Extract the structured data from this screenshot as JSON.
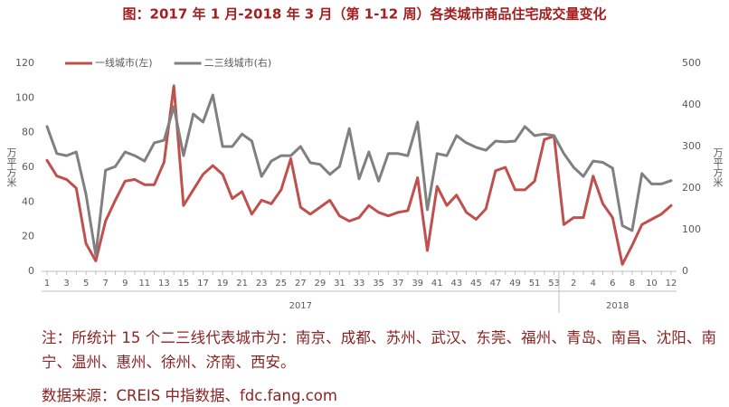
{
  "chart_data": {
    "type": "line",
    "title": "图：2017 年 1 月-2018 年 3 月（第 1-12 周）各类城市商品住宅成交量变化",
    "y_label": "万平方米",
    "y2_label": "万平方米",
    "groups": [
      {
        "label": "2017",
        "categories": [
          "1",
          null,
          "3",
          null,
          "5",
          null,
          "7",
          null,
          "9",
          null,
          "11",
          null,
          "13",
          null,
          "15",
          null,
          "17",
          null,
          "19",
          null,
          "21",
          null,
          "23",
          null,
          "25",
          null,
          "27",
          null,
          "29",
          null,
          "31",
          null,
          "33",
          null,
          "35",
          null,
          "37",
          null,
          "39",
          null,
          "41",
          null,
          "43",
          null,
          "45",
          null,
          "47",
          null,
          "49",
          null,
          "51",
          null,
          "53"
        ]
      },
      {
        "label": "2018",
        "categories": [
          null,
          "2",
          null,
          "4",
          null,
          "6",
          null,
          "8",
          null,
          "10",
          null,
          "12"
        ]
      }
    ],
    "series": [
      {
        "name": "一线城市(左)",
        "color": "#c0504d",
        "values": [
          64,
          55,
          53,
          48,
          16,
          6,
          29,
          41,
          52,
          53,
          50,
          50,
          63,
          107,
          38,
          47,
          56,
          61,
          56,
          42,
          46,
          33,
          41,
          39,
          47,
          65,
          37,
          33,
          37,
          41,
          32,
          29,
          31,
          38,
          34,
          32,
          34,
          35,
          54,
          12,
          49,
          38,
          44,
          34,
          30,
          36,
          58,
          60,
          47,
          47,
          52,
          76,
          78,
          27,
          31,
          31,
          55,
          39,
          31,
          4,
          15,
          27,
          30,
          33,
          38
        ]
      },
      {
        "name": "二三线城市(右)",
        "color": "#808080",
        "axis": "y2",
        "values": [
          348,
          283,
          278,
          287,
          185,
          39,
          243,
          252,
          287,
          278,
          265,
          309,
          315,
          396,
          278,
          378,
          359,
          424,
          300,
          300,
          330,
          313,
          228,
          265,
          278,
          278,
          300,
          261,
          257,
          233,
          252,
          343,
          222,
          287,
          217,
          283,
          283,
          278,
          359,
          148,
          283,
          278,
          326,
          309,
          298,
          291,
          313,
          311,
          313,
          348,
          326,
          330,
          326,
          283,
          250,
          228,
          265,
          262,
          248,
          110,
          98,
          235,
          210,
          210,
          218
        ]
      }
    ],
    "ylim": [
      0,
      120
    ],
    "yticks": [
      0,
      20,
      40,
      60,
      80,
      100,
      120
    ],
    "y2lim": [
      0,
      500
    ],
    "y2ticks": [
      0,
      100,
      200,
      300,
      400,
      500
    ],
    "grid": false,
    "legend": "top-left"
  },
  "note": "注：所统计 15 个二三线代表城市为：南京、成都、苏州、武汉、东莞、福州、青岛、南昌、沈阳、南宁、温州、惠州、徐州、济南、西安。",
  "source": "数据来源：CREIS 中指数据、fdc.fang.com"
}
